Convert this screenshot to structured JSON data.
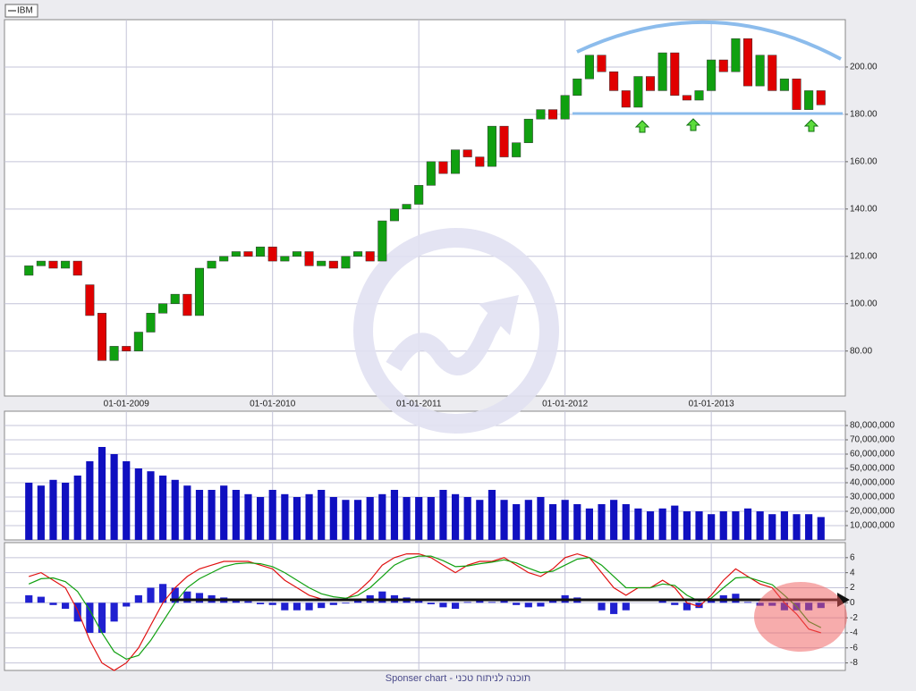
{
  "chart_data": [
    {
      "type": "candlestick",
      "name": "IBM",
      "up_color": "#10a010",
      "down_color": "#e00000",
      "xlim": [
        "2008-03",
        "2013-12"
      ],
      "xticks": [
        {
          "value": "2009-01",
          "label": "01-01-2009"
        },
        {
          "value": "2010-01",
          "label": "01-01-2010"
        },
        {
          "value": "2011-01",
          "label": "01-01-2011"
        },
        {
          "value": "2012-01",
          "label": "01-01-2012"
        },
        {
          "value": "2013-01",
          "label": "01-01-2013"
        }
      ],
      "ylim": [
        61,
        220
      ],
      "yticks": [
        {
          "value": 80,
          "label": "80.00"
        },
        {
          "value": 100,
          "label": "100.00"
        },
        {
          "value": 120,
          "label": "120.00"
        },
        {
          "value": 140,
          "label": "140.00"
        },
        {
          "value": 160,
          "label": "160.00"
        },
        {
          "value": 180,
          "label": "180.00"
        },
        {
          "value": 200,
          "label": "200.00"
        }
      ],
      "grid": true,
      "x": [
        "2008-05",
        "2008-06",
        "2008-07",
        "2008-08",
        "2008-09",
        "2008-10",
        "2008-11",
        "2008-12",
        "2009-01",
        "2009-02",
        "2009-03",
        "2009-04",
        "2009-05",
        "2009-06",
        "2009-07",
        "2009-08",
        "2009-09",
        "2009-10",
        "2009-11",
        "2009-12",
        "2010-01",
        "2010-02",
        "2010-03",
        "2010-04",
        "2010-05",
        "2010-06",
        "2010-07",
        "2010-08",
        "2010-09",
        "2010-10",
        "2010-11",
        "2010-12",
        "2011-01",
        "2011-02",
        "2011-03",
        "2011-04",
        "2011-05",
        "2011-06",
        "2011-07",
        "2011-08",
        "2011-09",
        "2011-10",
        "2011-11",
        "2011-12",
        "2012-01",
        "2012-02",
        "2012-03",
        "2012-04",
        "2012-05",
        "2012-06",
        "2012-07",
        "2012-08",
        "2012-09",
        "2012-10",
        "2012-11",
        "2012-12",
        "2013-01",
        "2013-02",
        "2013-03",
        "2013-04",
        "2013-05",
        "2013-06",
        "2013-07",
        "2013-08",
        "2013-09",
        "2013-10"
      ],
      "open": [
        112,
        116,
        118,
        115,
        118,
        108,
        96,
        76,
        82,
        80,
        88,
        96,
        100,
        104,
        95,
        115,
        118,
        120,
        122,
        120,
        124,
        118,
        120,
        122,
        116,
        118,
        115,
        120,
        122,
        118,
        135,
        140,
        142,
        150,
        160,
        155,
        165,
        162,
        158,
        175,
        162,
        168,
        178,
        182,
        178,
        188,
        195,
        205,
        198,
        190,
        183,
        196,
        190,
        206,
        188,
        186,
        190,
        203,
        198,
        212,
        192,
        205,
        190,
        195,
        182,
        190
      ],
      "close": [
        116,
        118,
        115,
        118,
        112,
        95,
        76,
        82,
        80,
        88,
        96,
        100,
        104,
        95,
        115,
        118,
        120,
        122,
        120,
        124,
        118,
        120,
        122,
        116,
        118,
        115,
        120,
        122,
        118,
        135,
        140,
        142,
        150,
        160,
        155,
        165,
        162,
        158,
        175,
        162,
        168,
        178,
        182,
        178,
        188,
        195,
        205,
        198,
        190,
        183,
        196,
        190,
        206,
        188,
        186,
        190,
        203,
        198,
        212,
        192,
        205,
        190,
        195,
        182,
        190,
        184
      ]
    },
    {
      "type": "bar",
      "color": "#1010c0",
      "xlim": [
        "2008-03",
        "2013-12"
      ],
      "ylim": [
        0,
        90000000
      ],
      "yticks": [
        {
          "value": 10000000,
          "label": "10,000,000"
        },
        {
          "value": 20000000,
          "label": "20,000,000"
        },
        {
          "value": 30000000,
          "label": "30,000,000"
        },
        {
          "value": 40000000,
          "label": "40,000,000"
        },
        {
          "value": 50000000,
          "label": "50,000,000"
        },
        {
          "value": 60000000,
          "label": "60,000,000"
        },
        {
          "value": 70000000,
          "label": "70,000,000"
        },
        {
          "value": 80000000,
          "label": "80,000,000"
        }
      ],
      "grid": true,
      "x": [
        "2008-05",
        "2008-06",
        "2008-07",
        "2008-08",
        "2008-09",
        "2008-10",
        "2008-11",
        "2008-12",
        "2009-01",
        "2009-02",
        "2009-03",
        "2009-04",
        "2009-05",
        "2009-06",
        "2009-07",
        "2009-08",
        "2009-09",
        "2009-10",
        "2009-11",
        "2009-12",
        "2010-01",
        "2010-02",
        "2010-03",
        "2010-04",
        "2010-05",
        "2010-06",
        "2010-07",
        "2010-08",
        "2010-09",
        "2010-10",
        "2010-11",
        "2010-12",
        "2011-01",
        "2011-02",
        "2011-03",
        "2011-04",
        "2011-05",
        "2011-06",
        "2011-07",
        "2011-08",
        "2011-09",
        "2011-10",
        "2011-11",
        "2011-12",
        "2012-01",
        "2012-02",
        "2012-03",
        "2012-04",
        "2012-05",
        "2012-06",
        "2012-07",
        "2012-08",
        "2012-09",
        "2012-10",
        "2012-11",
        "2012-12",
        "2013-01",
        "2013-02",
        "2013-03",
        "2013-04",
        "2013-05",
        "2013-06",
        "2013-07",
        "2013-08",
        "2013-09",
        "2013-10"
      ],
      "values": [
        40000000,
        38000000,
        42000000,
        40000000,
        45000000,
        55000000,
        65000000,
        60000000,
        55000000,
        50000000,
        48000000,
        45000000,
        42000000,
        38000000,
        35000000,
        35000000,
        38000000,
        35000000,
        32000000,
        30000000,
        35000000,
        32000000,
        30000000,
        32000000,
        35000000,
        30000000,
        28000000,
        28000000,
        30000000,
        32000000,
        35000000,
        30000000,
        30000000,
        30000000,
        35000000,
        32000000,
        30000000,
        28000000,
        35000000,
        28000000,
        25000000,
        28000000,
        30000000,
        25000000,
        28000000,
        25000000,
        22000000,
        25000000,
        28000000,
        25000000,
        22000000,
        20000000,
        22000000,
        24000000,
        20000000,
        20000000,
        18000000,
        20000000,
        20000000,
        22000000,
        20000000,
        18000000,
        20000000,
        18000000,
        18000000,
        16000000
      ]
    },
    {
      "type": "combo",
      "xlim": [
        "2008-03",
        "2013-12"
      ],
      "ylim": [
        -9,
        8
      ],
      "yticks": [
        -8,
        -6,
        -4,
        -2,
        0,
        2,
        4,
        6
      ],
      "grid": true,
      "x": [
        "2008-05",
        "2008-06",
        "2008-07",
        "2008-08",
        "2008-09",
        "2008-10",
        "2008-11",
        "2008-12",
        "2009-01",
        "2009-02",
        "2009-03",
        "2009-04",
        "2009-05",
        "2009-06",
        "2009-07",
        "2009-08",
        "2009-09",
        "2009-10",
        "2009-11",
        "2009-12",
        "2010-01",
        "2010-02",
        "2010-03",
        "2010-04",
        "2010-05",
        "2010-06",
        "2010-07",
        "2010-08",
        "2010-09",
        "2010-10",
        "2010-11",
        "2010-12",
        "2011-01",
        "2011-02",
        "2011-03",
        "2011-04",
        "2011-05",
        "2011-06",
        "2011-07",
        "2011-08",
        "2011-09",
        "2011-10",
        "2011-11",
        "2011-12",
        "2012-01",
        "2012-02",
        "2012-03",
        "2012-04",
        "2012-05",
        "2012-06",
        "2012-07",
        "2012-08",
        "2012-09",
        "2012-10",
        "2012-11",
        "2012-12",
        "2013-01",
        "2013-02",
        "2013-03",
        "2013-04",
        "2013-05",
        "2013-06",
        "2013-07",
        "2013-08",
        "2013-09",
        "2013-10"
      ],
      "series": [
        {
          "type": "bar",
          "color": "#2020d0",
          "values": [
            1,
            0.8,
            -0.3,
            -0.8,
            -2.5,
            -4,
            -4,
            -2.5,
            -0.5,
            1,
            2,
            2.5,
            2,
            1.5,
            1.3,
            1,
            0.7,
            0.3,
            0.2,
            -0.2,
            -0.3,
            -1,
            -1,
            -1,
            -0.7,
            -0.3,
            -0.1,
            0.5,
            1,
            1.5,
            1,
            0.7,
            0.3,
            -0.2,
            -0.6,
            -0.8,
            0.1,
            0.3,
            0.1,
            0.3,
            -0.3,
            -0.6,
            -0.5,
            0.3,
            1,
            0.7,
            0,
            -1,
            -1.5,
            -1,
            0,
            0,
            0.5,
            -0.3,
            -1,
            -0.7,
            0.4,
            1,
            1.2,
            0.1,
            -0.4,
            -0.4,
            -1,
            -1,
            -1,
            -0.7
          ]
        },
        {
          "type": "line",
          "color": "#e01010",
          "values": [
            3.5,
            4,
            3,
            2,
            -1,
            -5,
            -8,
            -9,
            -8,
            -6,
            -3,
            0,
            2,
            3.5,
            4.5,
            5,
            5.5,
            5.5,
            5.5,
            5,
            4.5,
            3,
            2,
            1,
            0.5,
            0.5,
            0.5,
            1.5,
            3,
            5,
            6,
            6.5,
            6.5,
            6,
            5,
            4,
            5,
            5.5,
            5.5,
            6,
            5,
            4,
            3.5,
            4.5,
            6,
            6.5,
            6,
            4,
            2,
            1,
            2,
            2,
            3,
            2,
            0,
            -0.5,
            1,
            3,
            4.5,
            3.5,
            2.5,
            2,
            0,
            -1.5,
            -3.5,
            -4
          ]
        },
        {
          "type": "line",
          "color": "#10a010",
          "values": [
            2.5,
            3.2,
            3.3,
            2.8,
            1.5,
            -1,
            -4,
            -6.5,
            -7.5,
            -7,
            -5,
            -2.5,
            0,
            2,
            3.2,
            4,
            4.8,
            5.2,
            5.3,
            5.2,
            4.8,
            4,
            3,
            2,
            1.2,
            0.8,
            0.6,
            1,
            2,
            3.5,
            5,
            5.8,
            6.2,
            6.2,
            5.6,
            4.8,
            4.9,
            5.2,
            5.4,
            5.7,
            5.3,
            4.6,
            4,
            4.2,
            5,
            5.8,
            6,
            5,
            3.5,
            2,
            2,
            2,
            2.5,
            2.3,
            1,
            0.2,
            0.6,
            2,
            3.3,
            3.4,
            2.9,
            2.4,
            1,
            -0.5,
            -2.5,
            -3.3
          ]
        }
      ]
    }
  ],
  "footer": "Sponser chart - תוכנה לניתוח טכני"
}
